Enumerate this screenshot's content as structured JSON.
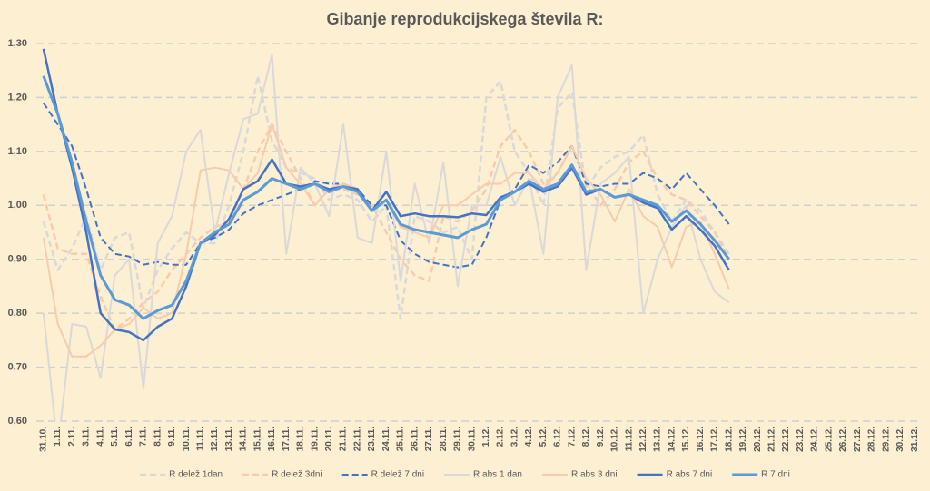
{
  "chart_data": {
    "type": "line",
    "title": "Gibanje reprodukcijskega števila R:",
    "categories": [
      "31.10.",
      "1.11.",
      "2.11.",
      "3.11.",
      "4.11.",
      "5.11.",
      "6.11.",
      "7.11.",
      "8.11.",
      "9.11.",
      "10.11.",
      "11.11.",
      "12.11.",
      "13.11.",
      "14.11.",
      "15.11.",
      "16.11.",
      "17.11.",
      "18.11.",
      "19.11.",
      "20.11.",
      "21.11.",
      "22.11.",
      "23.11.",
      "24.11.",
      "25.11.",
      "26.11.",
      "27.11.",
      "28.11.",
      "29.11.",
      "30.11.",
      "1.12.",
      "2.12.",
      "3.12.",
      "4.12.",
      "5.12.",
      "6.12.",
      "7.12.",
      "8.12.",
      "9.12.",
      "10.12.",
      "11.12.",
      "12.12.",
      "13.12.",
      "14.12.",
      "15.12.",
      "16.12.",
      "17.12.",
      "18.12.",
      "19.12.",
      "20.12.",
      "21.12.",
      "22.12.",
      "23.12.",
      "24.12.",
      "25.12.",
      "26.12.",
      "27.12.",
      "28.12.",
      "29.12.",
      "30.12.",
      "31.12."
    ],
    "series": [
      {
        "name": "R delež 1dan",
        "color": "#d9d9d9",
        "dash": true,
        "width": 2.5,
        "values": [
          0.97,
          0.88,
          0.92,
          0.98,
          0.88,
          0.94,
          0.95,
          0.81,
          0.88,
          0.92,
          0.95,
          0.93,
          0.93,
          1.0,
          1.1,
          1.24,
          1.12,
          1.07,
          1.06,
          1.05,
          1.01,
          1.02,
          1.01,
          0.97,
          1.0,
          0.79,
          0.98,
          0.97,
          0.95,
          0.96,
          0.9,
          1.2,
          1.23,
          1.1,
          1.06,
          1.0,
          1.18,
          1.21,
          1.03,
          1.07,
          1.09,
          1.1,
          1.13,
          1.02,
          0.97,
          1.01,
          0.99,
          0.95,
          0.91,
          null,
          null,
          null,
          null,
          null,
          null,
          null,
          null,
          null,
          null,
          null,
          null,
          null
        ]
      },
      {
        "name": "R delež 3dni",
        "color": "#f8cbad",
        "dash": true,
        "width": 2.5,
        "values": [
          1.02,
          0.92,
          0.91,
          0.91,
          0.83,
          0.77,
          0.79,
          0.82,
          0.84,
          0.88,
          0.91,
          0.94,
          0.96,
          0.97,
          1.03,
          1.1,
          1.15,
          1.1,
          1.05,
          1.0,
          1.03,
          1.03,
          1.02,
          1.0,
          0.95,
          0.9,
          0.87,
          0.86,
          0.98,
          0.97,
          0.99,
          1.03,
          1.11,
          1.14,
          1.1,
          1.04,
          1.06,
          1.11,
          1.04,
          1.0,
          1.03,
          1.08,
          1.1,
          1.05,
          1.02,
          1.01,
          0.98,
          0.95,
          0.9,
          null,
          null,
          null,
          null,
          null,
          null,
          null,
          null,
          null,
          null,
          null,
          null,
          null
        ]
      },
      {
        "name": "R delež 7 dni",
        "color": "#4472c4",
        "dash": true,
        "width": 2,
        "values": [
          1.19,
          1.15,
          1.11,
          1.03,
          0.94,
          0.91,
          0.905,
          0.89,
          0.895,
          0.89,
          0.89,
          0.93,
          0.94,
          0.955,
          0.985,
          1.0,
          1.01,
          1.02,
          1.03,
          1.045,
          1.04,
          1.04,
          1.03,
          1.0,
          1.0,
          0.935,
          0.91,
          0.895,
          0.89,
          0.885,
          0.89,
          0.94,
          1.01,
          1.03,
          1.075,
          1.06,
          1.08,
          1.11,
          1.04,
          1.035,
          1.04,
          1.04,
          1.06,
          1.05,
          1.03,
          1.06,
          1.03,
          1.0,
          0.965,
          null,
          null,
          null,
          null,
          null,
          null,
          null,
          null,
          null,
          null,
          null,
          null,
          null
        ]
      },
      {
        "name": "R abs 1 dan",
        "color": "#d9d9d9",
        "dash": false,
        "width": 2,
        "values": [
          0.8,
          0.55,
          0.78,
          0.775,
          0.68,
          0.87,
          0.9,
          0.66,
          0.93,
          0.98,
          1.1,
          1.14,
          0.95,
          1.06,
          1.16,
          1.17,
          1.28,
          0.91,
          1.07,
          1.04,
          0.98,
          1.15,
          0.94,
          0.93,
          1.1,
          0.86,
          1.04,
          0.93,
          1.08,
          0.85,
          1.0,
          1.0,
          1.09,
          1.0,
          1.05,
          0.91,
          1.2,
          1.26,
          0.88,
          1.04,
          1.06,
          1.09,
          0.8,
          0.9,
          0.96,
          1.0,
          0.9,
          0.84,
          0.82,
          null,
          null,
          null,
          null,
          null,
          null,
          null,
          null,
          null,
          null,
          null,
          null,
          null
        ]
      },
      {
        "name": "R abs 3 dni",
        "color": "#f8cbad",
        "dash": false,
        "width": 2,
        "values": [
          0.94,
          0.78,
          0.72,
          0.72,
          0.74,
          0.77,
          0.78,
          0.81,
          0.79,
          0.8,
          0.91,
          1.065,
          1.07,
          1.065,
          1.03,
          1.06,
          1.15,
          1.07,
          1.04,
          1.0,
          1.03,
          1.04,
          1.03,
          0.99,
          1.01,
          0.96,
          0.95,
          0.94,
          1.0,
          1.0,
          1.02,
          1.04,
          1.04,
          1.06,
          1.06,
          1.03,
          1.06,
          1.11,
          1.05,
          1.02,
          0.97,
          1.03,
          0.98,
          0.96,
          0.885,
          0.96,
          0.97,
          0.91,
          0.845,
          null,
          null,
          null,
          null,
          null,
          null,
          null,
          null,
          null,
          null,
          null,
          null,
          null
        ]
      },
      {
        "name": "R abs 7 dni",
        "color": "#4472c4",
        "dash": false,
        "width": 2.5,
        "values": [
          1.29,
          1.17,
          1.07,
          0.95,
          0.8,
          0.77,
          0.765,
          0.75,
          0.775,
          0.79,
          0.85,
          0.93,
          0.945,
          0.975,
          1.03,
          1.045,
          1.085,
          1.04,
          1.035,
          1.04,
          1.03,
          1.035,
          1.03,
          0.99,
          1.025,
          0.98,
          0.985,
          0.98,
          0.98,
          0.978,
          0.985,
          0.982,
          1.015,
          1.025,
          1.04,
          1.025,
          1.035,
          1.07,
          1.02,
          1.03,
          1.015,
          1.02,
          1.005,
          0.995,
          0.955,
          0.98,
          0.955,
          0.925,
          0.88,
          null,
          null,
          null,
          null,
          null,
          null,
          null,
          null,
          null,
          null,
          null,
          null,
          null
        ]
      },
      {
        "name": "R 7 dni",
        "color": "#5b9bd5",
        "dash": false,
        "width": 3,
        "values": [
          1.24,
          1.17,
          1.08,
          0.97,
          0.87,
          0.825,
          0.815,
          0.79,
          0.805,
          0.815,
          0.86,
          0.93,
          0.95,
          0.965,
          1.01,
          1.025,
          1.05,
          1.04,
          1.03,
          1.04,
          1.025,
          1.035,
          1.025,
          0.99,
          1.01,
          0.965,
          0.955,
          0.95,
          0.945,
          0.94,
          0.955,
          0.965,
          1.01,
          1.025,
          1.045,
          1.03,
          1.04,
          1.075,
          1.025,
          1.03,
          1.015,
          1.02,
          1.01,
          1.0,
          0.97,
          0.99,
          0.965,
          0.935,
          0.9,
          null,
          null,
          null,
          null,
          null,
          null,
          null,
          null,
          null,
          null,
          null,
          null,
          null
        ]
      }
    ],
    "ylim": [
      0.6,
      1.3
    ],
    "yticks": [
      {
        "value": 0.6,
        "label": "0,60"
      },
      {
        "value": 0.7,
        "label": "0,70"
      },
      {
        "value": 0.8,
        "label": "0,80"
      },
      {
        "value": 0.9,
        "label": "0,90"
      },
      {
        "value": 1.0,
        "label": "1,00"
      },
      {
        "value": 1.1,
        "label": "1,10"
      },
      {
        "value": 1.2,
        "label": "1,20"
      },
      {
        "value": 1.3,
        "label": "1,30"
      }
    ],
    "grid": true,
    "legend": "bottom"
  }
}
